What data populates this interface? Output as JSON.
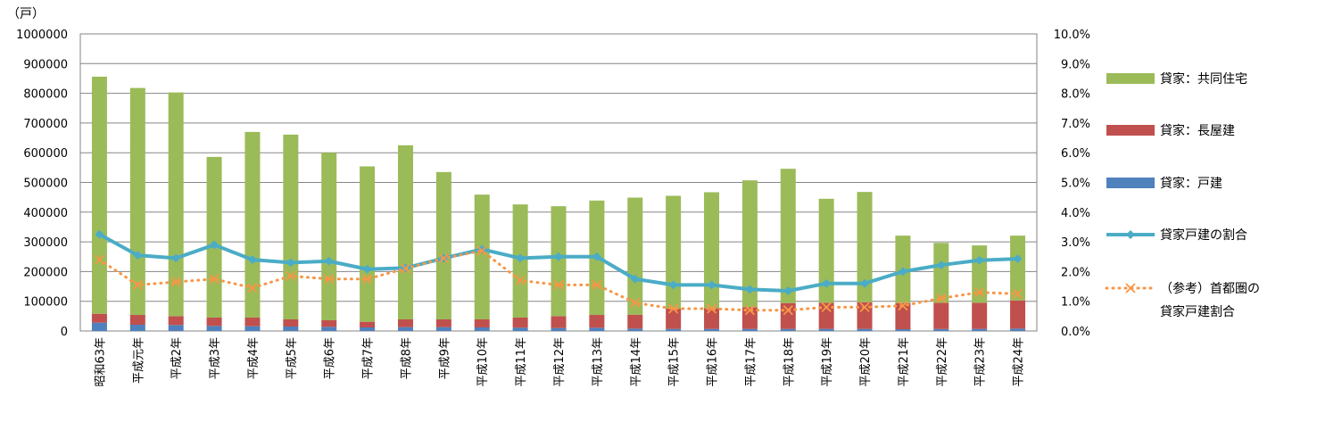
{
  "chart_data": {
    "type": "bar",
    "y_unit": "（戸）",
    "left_ticks": [
      "1000000",
      "900000",
      "800000",
      "700000",
      "600000",
      "500000",
      "400000",
      "300000",
      "200000",
      "100000",
      "0"
    ],
    "right_ticks": [
      "10.0%",
      "9.0%",
      "8.0%",
      "7.0%",
      "6.0%",
      "5.0%",
      "4.0%",
      "3.0%",
      "2.0%",
      "1.0%",
      "0.0%"
    ],
    "ylim": [
      0,
      1000000
    ],
    "y2lim": [
      0,
      10
    ],
    "grid": true,
    "legend_position": "right",
    "categories": [
      "昭和63年",
      "平成元年",
      "平成2年",
      "平成3年",
      "平成4年",
      "平成5年",
      "平成6年",
      "平成7年",
      "平成8年",
      "平成9年",
      "平成10年",
      "平成11年",
      "平成12年",
      "平成13年",
      "平成14年",
      "平成15年",
      "平成16年",
      "平成17年",
      "平成18年",
      "平成19年",
      "平成20年",
      "平成21年",
      "平成22年",
      "平成23年",
      "平成24年"
    ],
    "series": [
      {
        "name": "貸家：戸建",
        "type": "bar",
        "axis": "left",
        "color": "#4f81bd",
        "values": [
          28000,
          21000,
          20000,
          17000,
          16000,
          15000,
          14000,
          12000,
          13000,
          13000,
          12000,
          11000,
          10000,
          11000,
          8000,
          7000,
          7000,
          7000,
          7000,
          7000,
          7000,
          6000,
          6500,
          7000,
          8000
        ]
      },
      {
        "name": "貸家：長屋建",
        "type": "bar",
        "axis": "left",
        "color": "#c0504d",
        "values": [
          30000,
          33000,
          30000,
          28000,
          29000,
          24000,
          22000,
          19000,
          26000,
          26000,
          27000,
          34000,
          40000,
          43000,
          47000,
          68000,
          70000,
          73000,
          87000,
          88000,
          90000,
          88000,
          88000,
          88000,
          95000
        ]
      },
      {
        "name": "貸家：共同住宅",
        "type": "bar",
        "axis": "left",
        "color": "#9bbb59",
        "values": [
          798000,
          764000,
          753000,
          541000,
          625000,
          622000,
          564000,
          523000,
          586000,
          496000,
          420000,
          381000,
          370000,
          385000,
          394000,
          380000,
          390000,
          427000,
          452000,
          350000,
          371000,
          227000,
          202000,
          193000,
          218000
        ]
      },
      {
        "name": "貸家戸建の割合",
        "type": "line",
        "axis": "right",
        "color": "#4bacc6",
        "values": [
          3.25,
          2.55,
          2.45,
          2.9,
          2.4,
          2.3,
          2.35,
          2.08,
          2.12,
          2.45,
          2.75,
          2.45,
          2.5,
          2.5,
          1.75,
          1.55,
          1.55,
          1.4,
          1.35,
          1.6,
          1.6,
          2.0,
          2.22,
          2.38,
          2.43
        ]
      },
      {
        "name": "（参考）首都圏の\n貸家戸建割合",
        "type": "line",
        "axis": "right",
        "color": "#f79646",
        "values": [
          2.4,
          1.55,
          1.65,
          1.75,
          1.45,
          1.85,
          1.75,
          1.75,
          2.1,
          2.45,
          2.7,
          1.7,
          1.55,
          1.55,
          0.95,
          0.75,
          0.75,
          0.7,
          0.7,
          0.8,
          0.8,
          0.85,
          1.1,
          1.3,
          1.25
        ]
      }
    ]
  }
}
